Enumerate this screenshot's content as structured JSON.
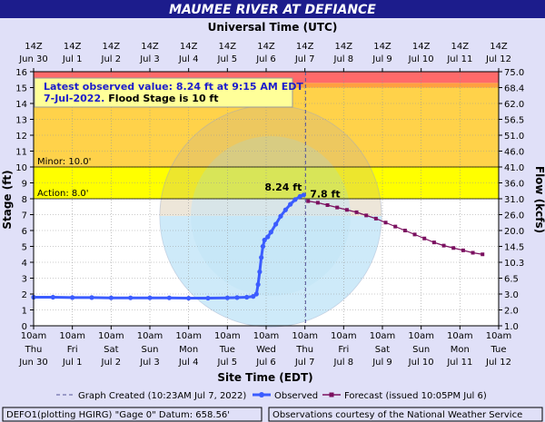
{
  "colors": {
    "page_bg": "#e0e0f8",
    "title_bar": "#1c1c8c",
    "title_text": "#ffffff",
    "major_band": "#ff6a6a",
    "moderate_band": "#ffa040",
    "flood_band": "#ffd24a",
    "action_band": "#ffff00",
    "normal_band": "#ffffff",
    "observed": "#3b5cff",
    "forecast": "#7b1060",
    "infobox_bg": "#ffff99",
    "infobox_text_blue": "#1c1ccc",
    "watermark": "#8fd0f0"
  },
  "header": {
    "title": "MAUMEE RIVER AT DEFIANCE",
    "top_axis_title": "Universal Time (UTC)"
  },
  "info_box": {
    "line1": "Latest observed value: 8.24 ft at 9:15 AM EDT",
    "line2_date": "7-Jul-2022.",
    "line2_rest": "Flood Stage is 10 ft"
  },
  "footer": {
    "legend_created": "Graph Created (10:23AM Jul 7, 2022)",
    "legend_observed": "Observed",
    "legend_forecast": "Forecast (issued 10:05PM Jul 6)",
    "gauge_info": "DEFO1(plotting HGIRG) \"Gage 0\" Datum: 658.56'",
    "courtesy": "Observations courtesy of the National Weather Service"
  },
  "chart_data": {
    "type": "line",
    "title": "MAUMEE RIVER AT DEFIANCE",
    "xlabel": "Site Time (EDT)",
    "x2label": "Universal Time (UTC)",
    "ylabel": "Stage (ft)",
    "y2label": "Flow (kcfs)",
    "ylim": [
      0,
      16
    ],
    "xlim_hours": [
      0,
      288
    ],
    "x_start": "2022-06-30 10:00 EDT",
    "grid": true,
    "yticks": [
      0,
      1,
      2,
      3,
      4,
      5,
      6,
      7,
      8,
      9,
      10,
      11,
      12,
      13,
      14,
      15,
      16
    ],
    "flow_ticks": [
      {
        "stage": 1,
        "label": "1.0"
      },
      {
        "stage": 2,
        "label": "2.0"
      },
      {
        "stage": 3,
        "label": "3.0"
      },
      {
        "stage": 4,
        "label": "6.5"
      },
      {
        "stage": 5,
        "label": "10.3"
      },
      {
        "stage": 6,
        "label": "14.5"
      },
      {
        "stage": 7,
        "label": "20.0"
      },
      {
        "stage": 8,
        "label": "26.0"
      },
      {
        "stage": 9,
        "label": "31.0"
      },
      {
        "stage": 10,
        "label": "36.0"
      },
      {
        "stage": 11,
        "label": "41.0"
      },
      {
        "stage": 12,
        "label": "46.0"
      },
      {
        "stage": 13,
        "label": "51.0"
      },
      {
        "stage": 14,
        "label": "56.5"
      },
      {
        "stage": 15,
        "label": "62.0"
      },
      {
        "stage": 16,
        "label": "68.4"
      },
      {
        "stage": 17,
        "label": "75.0"
      }
    ],
    "bottom_ticks": [
      {
        "hour": 0,
        "time": "10am",
        "day": "Thu",
        "date": "Jun 30"
      },
      {
        "hour": 24,
        "time": "10am",
        "day": "Fri",
        "date": "Jul 1"
      },
      {
        "hour": 48,
        "time": "10am",
        "day": "Sat",
        "date": "Jul 2"
      },
      {
        "hour": 72,
        "time": "10am",
        "day": "Sun",
        "date": "Jul 3"
      },
      {
        "hour": 96,
        "time": "10am",
        "day": "Mon",
        "date": "Jul 4"
      },
      {
        "hour": 120,
        "time": "10am",
        "day": "Tue",
        "date": "Jul 5"
      },
      {
        "hour": 144,
        "time": "10am",
        "day": "Wed",
        "date": "Jul 6"
      },
      {
        "hour": 168,
        "time": "10am",
        "day": "Thu",
        "date": "Jul 7"
      },
      {
        "hour": 192,
        "time": "10am",
        "day": "Fri",
        "date": "Jul 8"
      },
      {
        "hour": 216,
        "time": "10am",
        "day": "Sat",
        "date": "Jul 9"
      },
      {
        "hour": 240,
        "time": "10am",
        "day": "Sun",
        "date": "Jul 10"
      },
      {
        "hour": 264,
        "time": "10am",
        "day": "Mon",
        "date": "Jul 11"
      },
      {
        "hour": 288,
        "time": "10am",
        "day": "Tue",
        "date": "Jul 12"
      }
    ],
    "top_ticks": [
      {
        "hour": 0,
        "time": "14Z",
        "date": "Jun 30"
      },
      {
        "hour": 24,
        "time": "14Z",
        "date": "Jul 1"
      },
      {
        "hour": 48,
        "time": "14Z",
        "date": "Jul 2"
      },
      {
        "hour": 72,
        "time": "14Z",
        "date": "Jul 3"
      },
      {
        "hour": 96,
        "time": "14Z",
        "date": "Jul 4"
      },
      {
        "hour": 120,
        "time": "14Z",
        "date": "Jul 5"
      },
      {
        "hour": 144,
        "time": "14Z",
        "date": "Jul 6"
      },
      {
        "hour": 168,
        "time": "14Z",
        "date": "Jul 7"
      },
      {
        "hour": 192,
        "time": "14Z",
        "date": "Jul 8"
      },
      {
        "hour": 216,
        "time": "14Z",
        "date": "Jul 9"
      },
      {
        "hour": 240,
        "time": "14Z",
        "date": "Jul 10"
      },
      {
        "hour": 264,
        "time": "14Z",
        "date": "Jul 11"
      },
      {
        "hour": 288,
        "time": "14Z",
        "date": "Jul 12"
      }
    ],
    "bands": [
      {
        "name": "normal",
        "from": 0,
        "to": 8
      },
      {
        "name": "action",
        "from": 8,
        "to": 10
      },
      {
        "name": "flood",
        "from": 10,
        "to": 15
      },
      {
        "name": "moderate",
        "from": 15,
        "to": 15.3
      },
      {
        "name": "major",
        "from": 15.3,
        "to": 16
      }
    ],
    "thresholds": [
      {
        "label": "Minor: 10.0'",
        "stage": 10
      },
      {
        "label": "Action: 8.0'",
        "stage": 8
      }
    ],
    "created_marker_hour": 168.4,
    "series": [
      {
        "name": "Observed",
        "points": [
          [
            0,
            1.8
          ],
          [
            12,
            1.8
          ],
          [
            24,
            1.78
          ],
          [
            36,
            1.78
          ],
          [
            48,
            1.76
          ],
          [
            60,
            1.76
          ],
          [
            72,
            1.76
          ],
          [
            84,
            1.76
          ],
          [
            96,
            1.74
          ],
          [
            108,
            1.74
          ],
          [
            120,
            1.76
          ],
          [
            126,
            1.78
          ],
          [
            132,
            1.8
          ],
          [
            136,
            1.85
          ],
          [
            138,
            2.0
          ],
          [
            139,
            2.6
          ],
          [
            140,
            3.4
          ],
          [
            141,
            4.3
          ],
          [
            142,
            5.0
          ],
          [
            143,
            5.4
          ],
          [
            145,
            5.6
          ],
          [
            147,
            5.9
          ],
          [
            150,
            6.4
          ],
          [
            153,
            6.9
          ],
          [
            156,
            7.3
          ],
          [
            159,
            7.65
          ],
          [
            162,
            7.95
          ],
          [
            165,
            8.15
          ],
          [
            167.25,
            8.24
          ]
        ]
      },
      {
        "name": "Forecast",
        "points": [
          [
            170,
            7.85
          ],
          [
            176,
            7.75
          ],
          [
            182,
            7.6
          ],
          [
            188,
            7.45
          ],
          [
            194,
            7.3
          ],
          [
            200,
            7.15
          ],
          [
            206,
            6.95
          ],
          [
            212,
            6.75
          ],
          [
            218,
            6.5
          ],
          [
            224,
            6.25
          ],
          [
            230,
            6.0
          ],
          [
            236,
            5.75
          ],
          [
            242,
            5.5
          ],
          [
            248,
            5.25
          ],
          [
            254,
            5.05
          ],
          [
            260,
            4.9
          ],
          [
            266,
            4.75
          ],
          [
            272,
            4.6
          ],
          [
            278,
            4.5
          ]
        ]
      }
    ],
    "annotations": [
      {
        "text": "8.24 ft",
        "hour": 167.25,
        "stage": 8.24
      },
      {
        "text": "7.8 ft",
        "hour": 170,
        "stage": 7.85
      }
    ]
  }
}
